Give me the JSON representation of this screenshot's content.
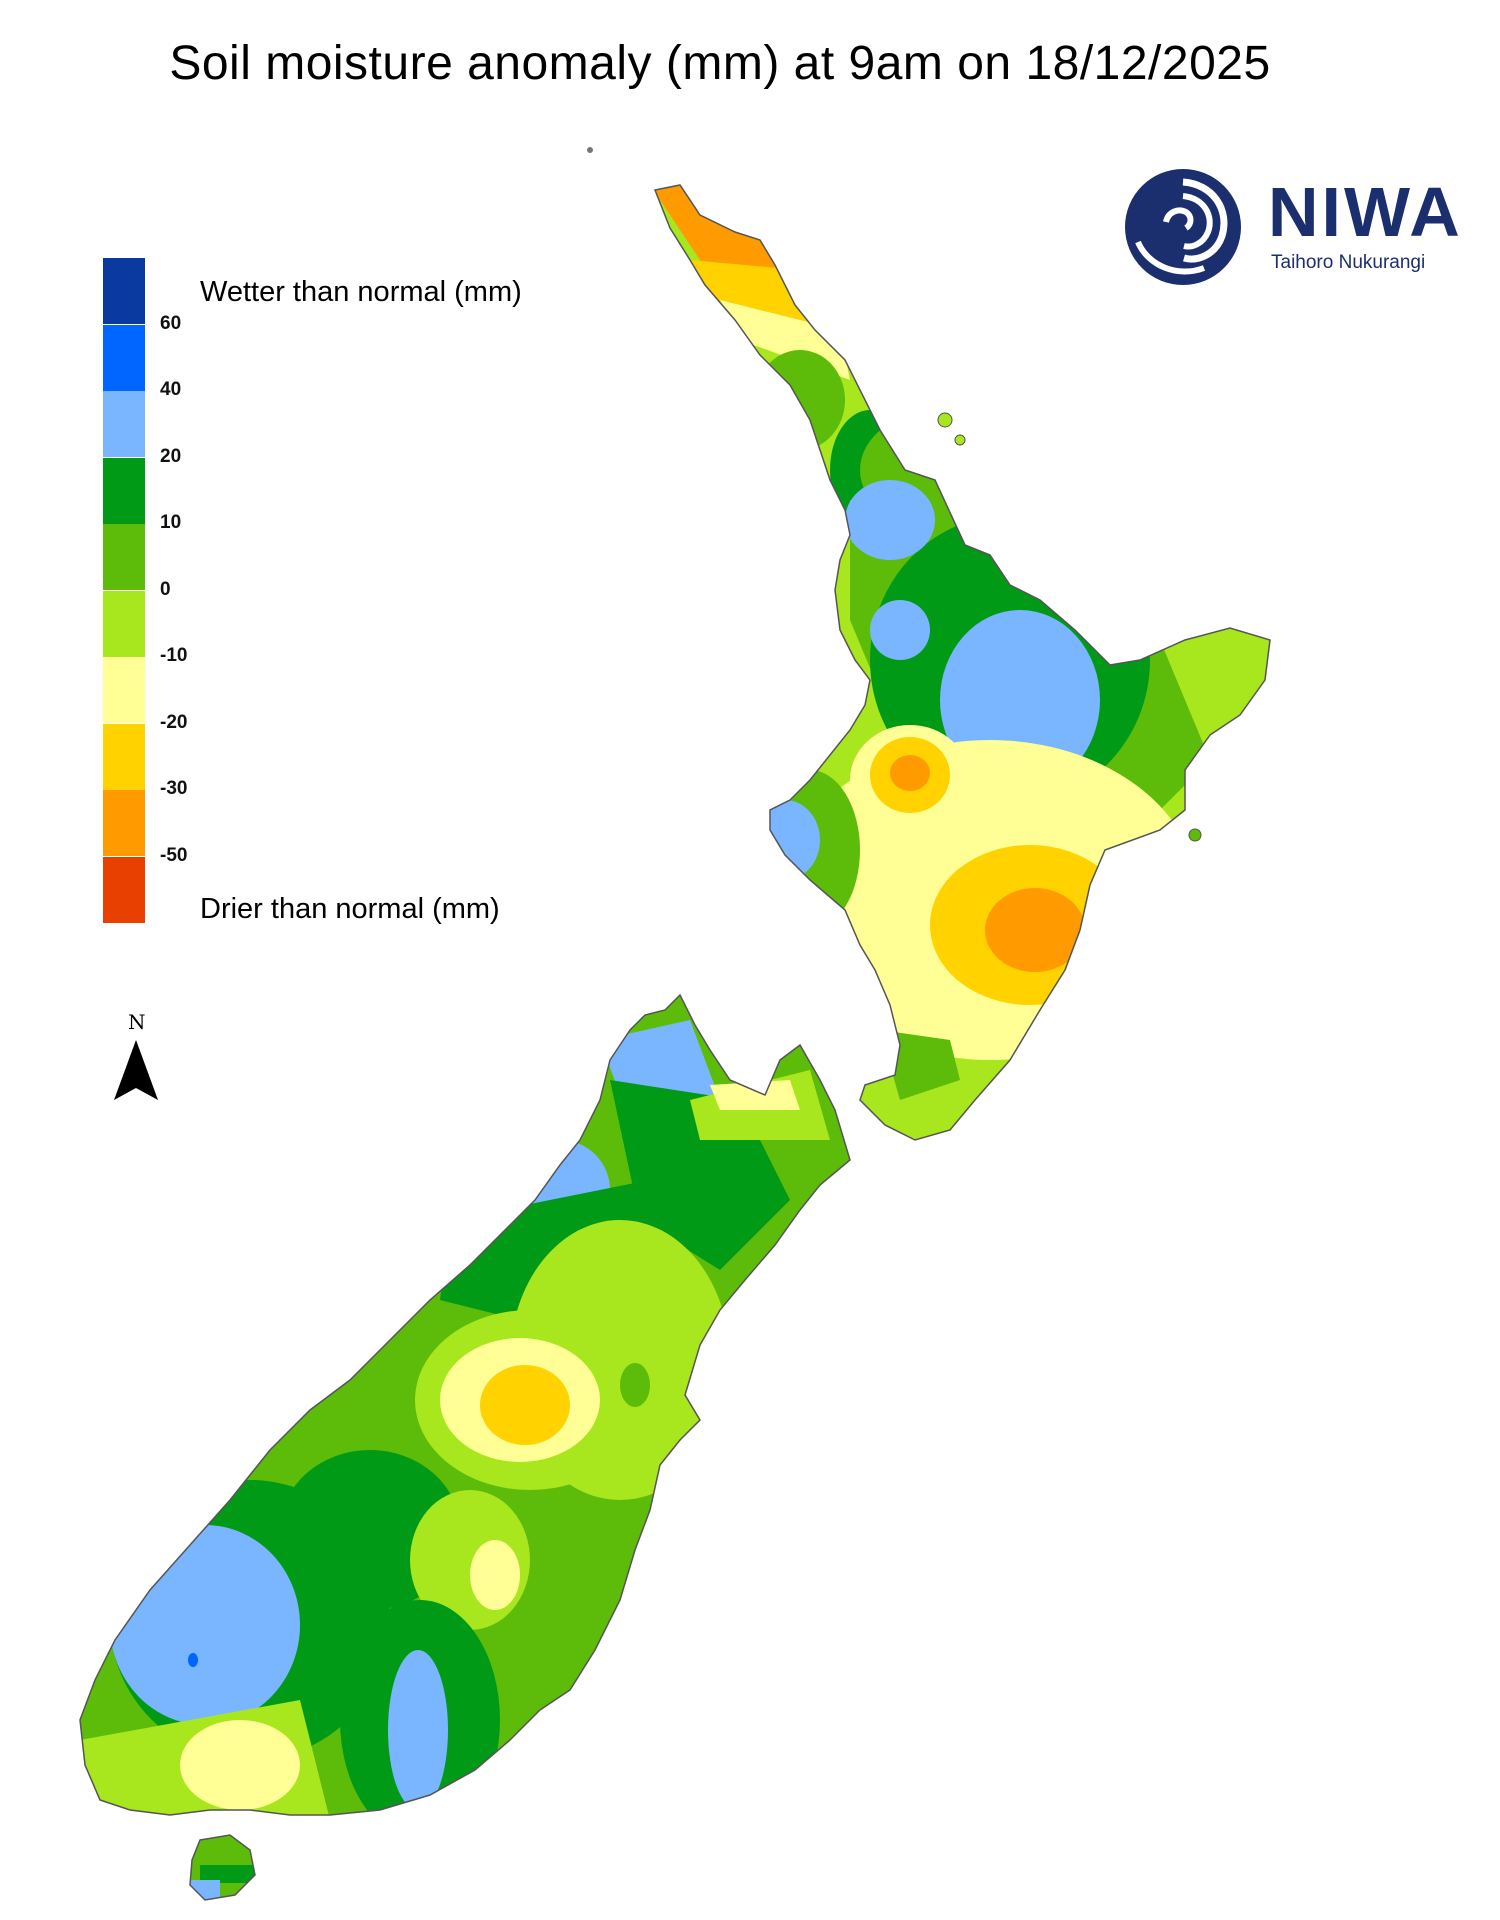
{
  "title": "Soil moisture anomaly (mm) at 9am on 18/12/2025",
  "legend": {
    "wetter_label": "Wetter than normal (mm)",
    "drier_label": "Drier than normal (mm)",
    "ticks": [
      "60",
      "40",
      "20",
      "10",
      "0",
      "-10",
      "-20",
      "-30",
      "-50"
    ],
    "colors": [
      "#0a3aa0",
      "#0066ff",
      "#7ab6ff",
      "#009a16",
      "#5dbb0a",
      "#a8e61e",
      "#ffff96",
      "#ffd200",
      "#ff9a00",
      "#e84000"
    ]
  },
  "north": {
    "label": "N"
  },
  "logo": {
    "name": "NIWA",
    "subtitle": "Taihoro Nukurangi",
    "color": "#1b2f6e"
  }
}
